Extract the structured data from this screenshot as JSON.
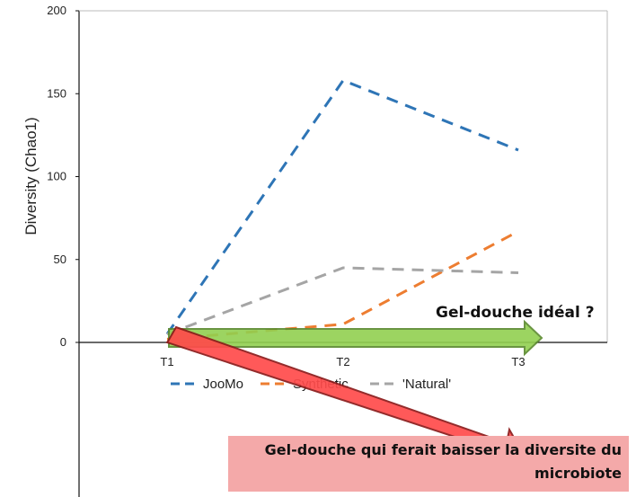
{
  "chart_data": {
    "type": "line",
    "categories": [
      "T1",
      "T2",
      "T3"
    ],
    "ylabel": "Diversity (Chao1)",
    "ylim": [
      0,
      200
    ],
    "yticks": [
      0,
      50,
      100,
      150,
      200
    ],
    "grid": false,
    "legend_position": "bottom",
    "series": [
      {
        "name": "JooMo",
        "values": [
          5,
          158,
          116
        ],
        "color": "#2e75b6",
        "style": "dashed"
      },
      {
        "name": "Synthetic",
        "values": [
          2,
          11,
          67
        ],
        "color": "#ed7d31",
        "style": "dashed"
      },
      {
        "name": "'Natural'",
        "values": [
          5,
          45,
          42
        ],
        "color": "#a5a5a5",
        "style": "dashed"
      }
    ]
  },
  "annotations": {
    "green_arrow_label": "Gel-douche idéal ?",
    "green_arrow_color": "#92d050",
    "red_arrow_color": "#ff4b4b",
    "red_box_color": "#f4a9a9",
    "red_box_text": "Gel-douche qui ferait baisser la diversite du microbiote"
  }
}
